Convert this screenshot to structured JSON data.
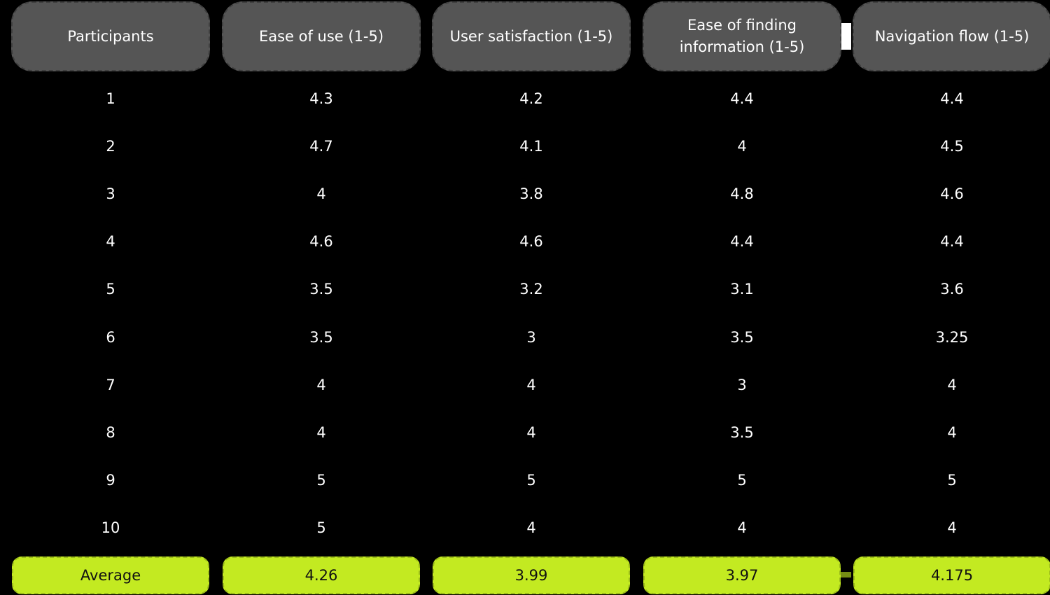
{
  "chart_data": {
    "type": "table",
    "columns": [
      "Participants",
      "Ease of use (1-5)",
      "User satisfaction (1-5)",
      "Ease of finding\ninformation (1-5)",
      "Navigation flow (1-5)"
    ],
    "rows": [
      [
        "1",
        "4.3",
        "4.2",
        "4.4",
        "4.4"
      ],
      [
        "2",
        "4.7",
        "4.1",
        "4",
        "4.5"
      ],
      [
        "3",
        "4",
        "3.8",
        "4.8",
        "4.6"
      ],
      [
        "4",
        "4.6",
        "4.6",
        "4.4",
        "4.4"
      ],
      [
        "5",
        "3.5",
        "3.2",
        "3.1",
        "3.6"
      ],
      [
        "6",
        "3.5",
        "3",
        "3.5",
        "3.25"
      ],
      [
        "7",
        "4",
        "4",
        "3",
        "4"
      ],
      [
        "8",
        "4",
        "4",
        "3.5",
        "4"
      ],
      [
        "9",
        "5",
        "5",
        "5",
        "5"
      ],
      [
        "10",
        "5",
        "4",
        "4",
        "4"
      ]
    ],
    "footer": [
      "Average",
      "4.26",
      "3.99",
      "3.97",
      "4.175"
    ]
  },
  "colors": {
    "background": "#000000",
    "header_fill": "#555555",
    "average_fill": "#c3ea21",
    "text": "#ffffff",
    "average_text": "#111111"
  }
}
